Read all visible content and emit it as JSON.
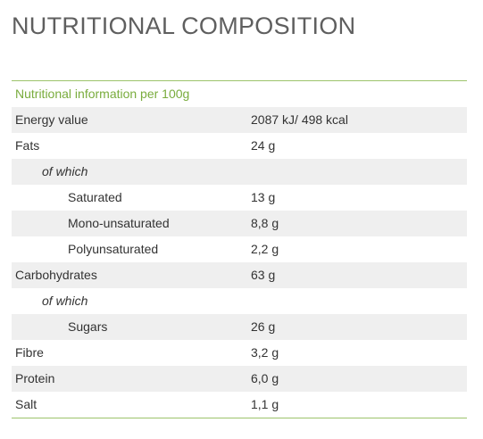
{
  "title": "NUTRITIONAL COMPOSITION",
  "table": {
    "caption": "Nutritional information per 100g",
    "rows": [
      {
        "label": "Energy value",
        "value": "2087 kJ/ 498 kcal"
      },
      {
        "label": "Fats",
        "value": "24 g"
      },
      {
        "label": "of which",
        "value": ""
      },
      {
        "label": "Saturated",
        "value": "13 g"
      },
      {
        "label": "Mono-unsaturated",
        "value": "8,8 g"
      },
      {
        "label": "Polyunsaturated",
        "value": "2,2 g"
      },
      {
        "label": "Carbohydrates",
        "value": "63 g"
      },
      {
        "label": "of which",
        "value": ""
      },
      {
        "label": "Sugars",
        "value": "26 g"
      },
      {
        "label": "Fibre",
        "value": "3,2 g"
      },
      {
        "label": "Protein",
        "value": "6,0 g"
      },
      {
        "label": "Salt",
        "value": "1,1 g"
      }
    ]
  },
  "colors": {
    "accent": "#79ac3d",
    "rule": "#9cc36b",
    "row_shade": "#efefef",
    "title": "#5f5f5f",
    "text": "#333333"
  }
}
